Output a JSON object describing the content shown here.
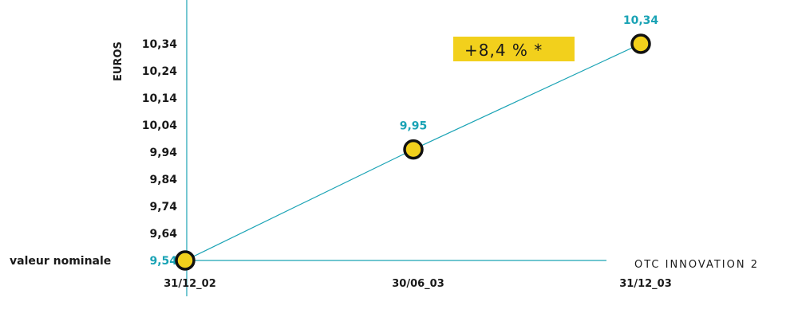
{
  "chart_data": {
    "type": "line",
    "ylabel": "EUROS",
    "ylim": [
      9.54,
      10.34
    ],
    "yticks": [
      "9,54",
      "9,64",
      "9,74",
      "9,84",
      "9,94",
      "10,04",
      "10,14",
      "10,24",
      "10,34"
    ],
    "ytick_values": [
      9.54,
      9.64,
      9.74,
      9.84,
      9.94,
      10.04,
      10.14,
      10.24,
      10.34
    ],
    "categories": [
      "31/12_02",
      "30/06_03",
      "31/12_03"
    ],
    "series": [
      {
        "name": "OTC INNOVATION 2",
        "values": [
          9.54,
          9.95,
          10.34
        ],
        "labels": [
          "9,54",
          "9,95",
          "10,34"
        ]
      }
    ],
    "annotations": {
      "baseline_label": "valeur nominale",
      "growth_badge": "+8,4 % *"
    },
    "colors": {
      "line": "#1aa3b5",
      "marker_fill": "#f2d01c",
      "marker_stroke": "#111111",
      "badge_bg": "#f2d01c",
      "label": "#1aa3b5"
    },
    "grid": false
  }
}
